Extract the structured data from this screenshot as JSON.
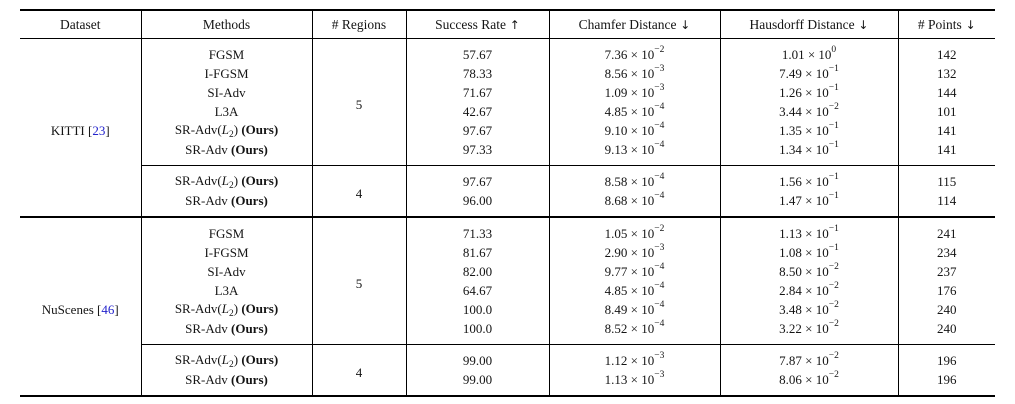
{
  "page": {
    "citation_color": "#2222cc",
    "text_color": "#141414",
    "rule_color": "#000000",
    "background": "#ffffff"
  },
  "table": {
    "columns": [
      {
        "key": "dataset",
        "label": "Dataset",
        "arrow": ""
      },
      {
        "key": "method",
        "label": "Methods",
        "arrow": ""
      },
      {
        "key": "regions",
        "label": "# Regions",
        "arrow": ""
      },
      {
        "key": "success",
        "label": "Success Rate",
        "arrow": "↑"
      },
      {
        "key": "chamfer",
        "label": "Chamfer Distance",
        "arrow": "↓"
      },
      {
        "key": "hausdorff",
        "label": "Hausdorff Distance",
        "arrow": "↓"
      },
      {
        "key": "points",
        "label": "# Points",
        "arrow": "↓"
      }
    ],
    "notation": {
      "times": "×",
      "base": "10",
      "cite_open": "[",
      "cite_close": "]"
    },
    "groups": [
      {
        "dataset": "KITTI",
        "citation": "23",
        "subgroups": [
          {
            "regions": "5",
            "rows": [
              {
                "method": [
                  [
                    "FGSM",
                    "n"
                  ]
                ],
                "success": "57.67",
                "chamfer": {
                  "m": "7.36",
                  "e": "−2"
                },
                "hausdorff": {
                  "m": "1.01",
                  "e": "0"
                },
                "points": "142"
              },
              {
                "method": [
                  [
                    "I-FGSM",
                    "n"
                  ]
                ],
                "success": "78.33",
                "chamfer": {
                  "m": "8.56",
                  "e": "−3"
                },
                "hausdorff": {
                  "m": "7.49",
                  "e": "−1"
                },
                "points": "132"
              },
              {
                "method": [
                  [
                    "SI-Adv",
                    "n"
                  ]
                ],
                "success": "71.67",
                "chamfer": {
                  "m": "1.09",
                  "e": "−3"
                },
                "hausdorff": {
                  "m": "1.26",
                  "e": "−1"
                },
                "points": "144"
              },
              {
                "method": [
                  [
                    "L3A",
                    "n"
                  ]
                ],
                "success": "42.67",
                "chamfer": {
                  "m": "4.85",
                  "e": "−4"
                },
                "hausdorff": {
                  "m": "3.44",
                  "e": "−2"
                },
                "points": "101"
              },
              {
                "method": [
                  [
                    "SR-Adv(",
                    "n"
                  ],
                  [
                    "L",
                    "i"
                  ],
                  [
                    "2",
                    "s"
                  ],
                  [
                    ")",
                    "n"
                  ],
                  [
                    " (Ours)",
                    "b"
                  ]
                ],
                "success": "97.67",
                "chamfer": {
                  "m": "9.10",
                  "e": "−4"
                },
                "hausdorff": {
                  "m": "1.35",
                  "e": "−1"
                },
                "points": "141"
              },
              {
                "method": [
                  [
                    "SR-Adv",
                    "n"
                  ],
                  [
                    " (Ours)",
                    "b"
                  ]
                ],
                "success": "97.33",
                "chamfer": {
                  "m": "9.13",
                  "e": "−4"
                },
                "hausdorff": {
                  "m": "1.34",
                  "e": "−1"
                },
                "points": "141"
              }
            ]
          },
          {
            "regions": "4",
            "rows": [
              {
                "method": [
                  [
                    "SR-Adv(",
                    "n"
                  ],
                  [
                    "L",
                    "i"
                  ],
                  [
                    "2",
                    "s"
                  ],
                  [
                    ")",
                    "n"
                  ],
                  [
                    " (Ours)",
                    "b"
                  ]
                ],
                "success": "97.67",
                "chamfer": {
                  "m": "8.58",
                  "e": "−4"
                },
                "hausdorff": {
                  "m": "1.56",
                  "e": "−1"
                },
                "points": "115"
              },
              {
                "method": [
                  [
                    "SR-Adv",
                    "n"
                  ],
                  [
                    " (Ours)",
                    "b"
                  ]
                ],
                "success": "96.00",
                "chamfer": {
                  "m": "8.68",
                  "e": "−4"
                },
                "hausdorff": {
                  "m": "1.47",
                  "e": "−1"
                },
                "points": "114"
              }
            ]
          }
        ]
      },
      {
        "dataset": "NuScenes",
        "citation": "46",
        "subgroups": [
          {
            "regions": "5",
            "rows": [
              {
                "method": [
                  [
                    "FGSM",
                    "n"
                  ]
                ],
                "success": "71.33",
                "chamfer": {
                  "m": "1.05",
                  "e": "−2"
                },
                "hausdorff": {
                  "m": "1.13",
                  "e": "−1"
                },
                "points": "241"
              },
              {
                "method": [
                  [
                    "I-FGSM",
                    "n"
                  ]
                ],
                "success": "81.67",
                "chamfer": {
                  "m": "2.90",
                  "e": "−3"
                },
                "hausdorff": {
                  "m": "1.08",
                  "e": "−1"
                },
                "points": "234"
              },
              {
                "method": [
                  [
                    "SI-Adv",
                    "n"
                  ]
                ],
                "success": "82.00",
                "chamfer": {
                  "m": "9.77",
                  "e": "−4"
                },
                "hausdorff": {
                  "m": "8.50",
                  "e": "−2"
                },
                "points": "237"
              },
              {
                "method": [
                  [
                    "L3A",
                    "n"
                  ]
                ],
                "success": "64.67",
                "chamfer": {
                  "m": "4.85",
                  "e": "−4"
                },
                "hausdorff": {
                  "m": "2.84",
                  "e": "−2"
                },
                "points": "176"
              },
              {
                "method": [
                  [
                    "SR-Adv(",
                    "n"
                  ],
                  [
                    "L",
                    "i"
                  ],
                  [
                    "2",
                    "s"
                  ],
                  [
                    ")",
                    "n"
                  ],
                  [
                    " (Ours)",
                    "b"
                  ]
                ],
                "success": "100.0",
                "chamfer": {
                  "m": "8.49",
                  "e": "−4"
                },
                "hausdorff": {
                  "m": "3.48",
                  "e": "−2"
                },
                "points": "240"
              },
              {
                "method": [
                  [
                    "SR-Adv",
                    "n"
                  ],
                  [
                    " (Ours)",
                    "b"
                  ]
                ],
                "success": "100.0",
                "chamfer": {
                  "m": "8.52",
                  "e": "−4"
                },
                "hausdorff": {
                  "m": "3.22",
                  "e": "−2"
                },
                "points": "240"
              }
            ]
          },
          {
            "regions": "4",
            "rows": [
              {
                "method": [
                  [
                    "SR-Adv(",
                    "n"
                  ],
                  [
                    "L",
                    "i"
                  ],
                  [
                    "2",
                    "s"
                  ],
                  [
                    ")",
                    "n"
                  ],
                  [
                    " (Ours)",
                    "b"
                  ]
                ],
                "success": "99.00",
                "chamfer": {
                  "m": "1.12",
                  "e": "−3"
                },
                "hausdorff": {
                  "m": "7.87",
                  "e": "−2"
                },
                "points": "196"
              },
              {
                "method": [
                  [
                    "SR-Adv",
                    "n"
                  ],
                  [
                    " (Ours)",
                    "b"
                  ]
                ],
                "success": "99.00",
                "chamfer": {
                  "m": "1.13",
                  "e": "−3"
                },
                "hausdorff": {
                  "m": "8.06",
                  "e": "−2"
                },
                "points": "196"
              }
            ]
          }
        ]
      }
    ]
  }
}
